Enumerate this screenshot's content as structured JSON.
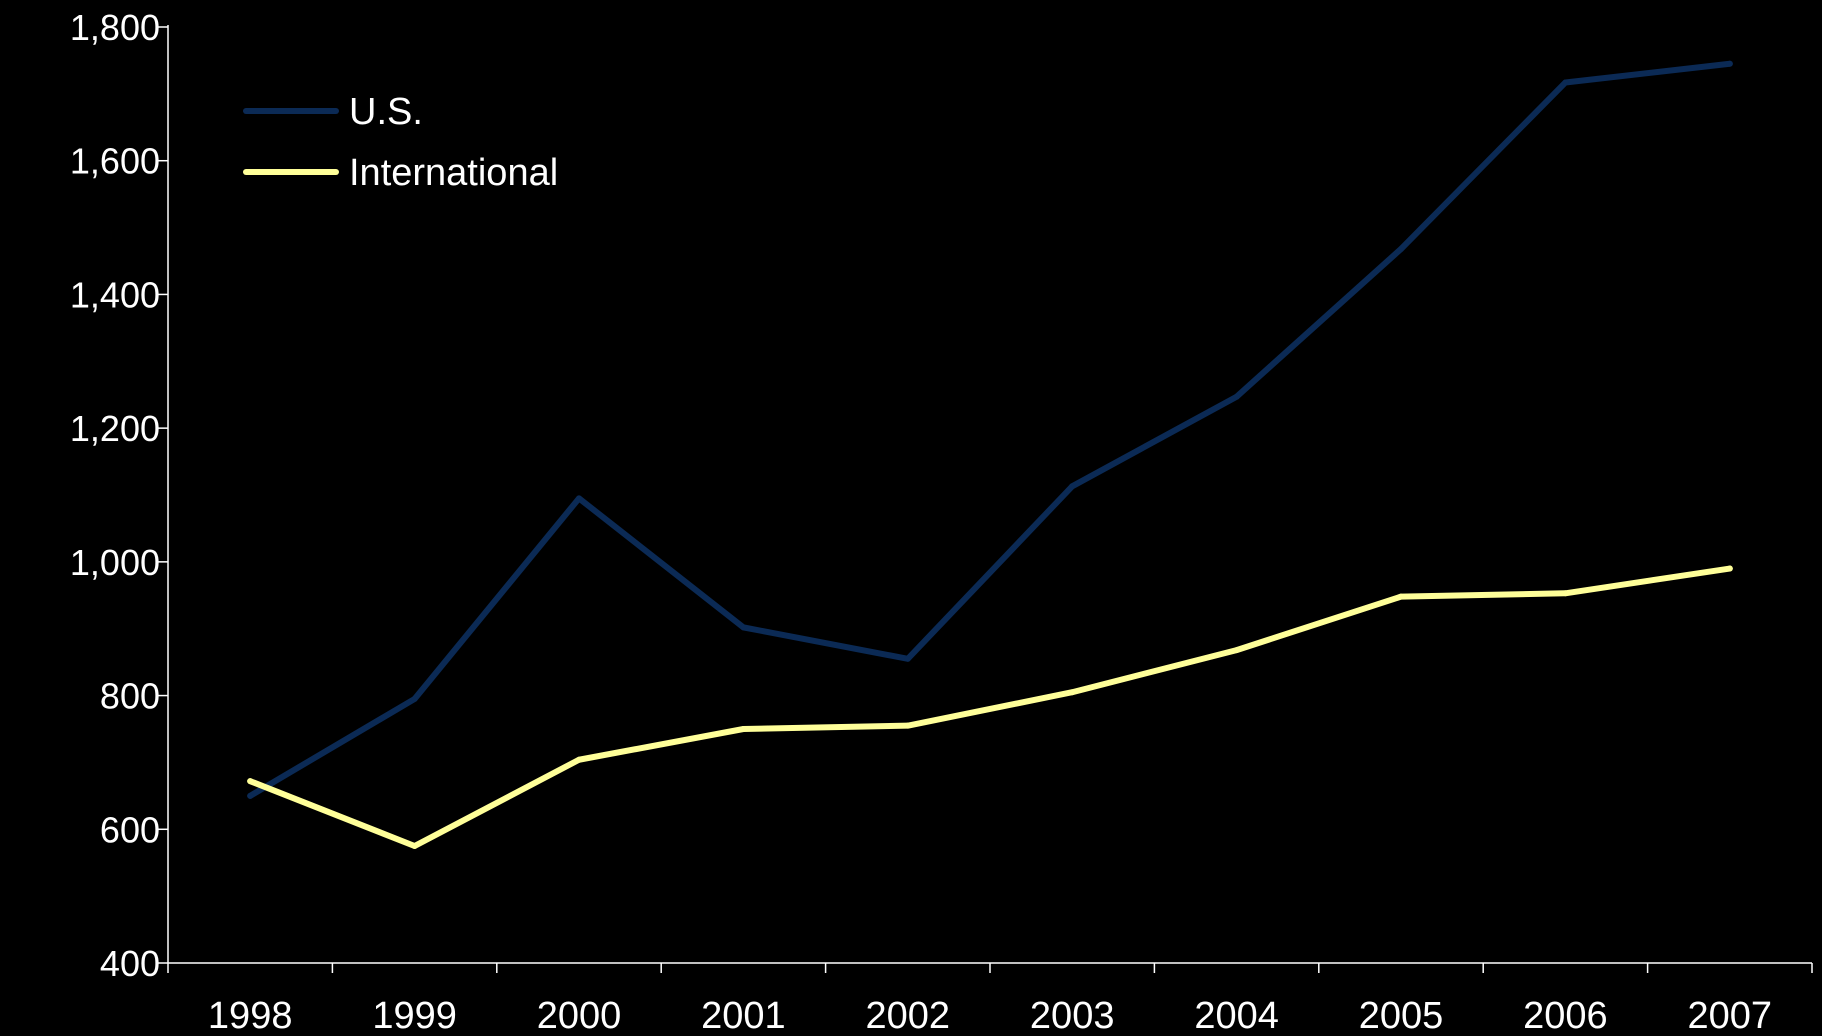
{
  "chart_data": {
    "type": "line",
    "title": "",
    "xlabel": "",
    "ylabel": "",
    "categories": [
      "1998",
      "1999",
      "2000",
      "2001",
      "2002",
      "2003",
      "2004",
      "2005",
      "2006",
      "2007"
    ],
    "ylim": [
      400,
      1800
    ],
    "yticks": [
      "400",
      "600",
      "800",
      "1,000",
      "1,200",
      "1,400",
      "1,600",
      "1,800"
    ],
    "ytick_values": [
      400,
      600,
      800,
      1000,
      1200,
      1400,
      1600,
      1800
    ],
    "grid": false,
    "legend_position": "top-left",
    "background_color": "#000000",
    "axis_color": "#ffffff",
    "series": [
      {
        "name": "U.S.",
        "color": "#0b2a55",
        "values": [
          650,
          795,
          1095,
          902,
          855,
          1113,
          1247,
          1468,
          1717,
          1745
        ]
      },
      {
        "name": "International",
        "color": "#ffff99",
        "values": [
          672,
          575,
          704,
          750,
          755,
          805,
          868,
          948,
          953,
          990
        ]
      }
    ]
  }
}
